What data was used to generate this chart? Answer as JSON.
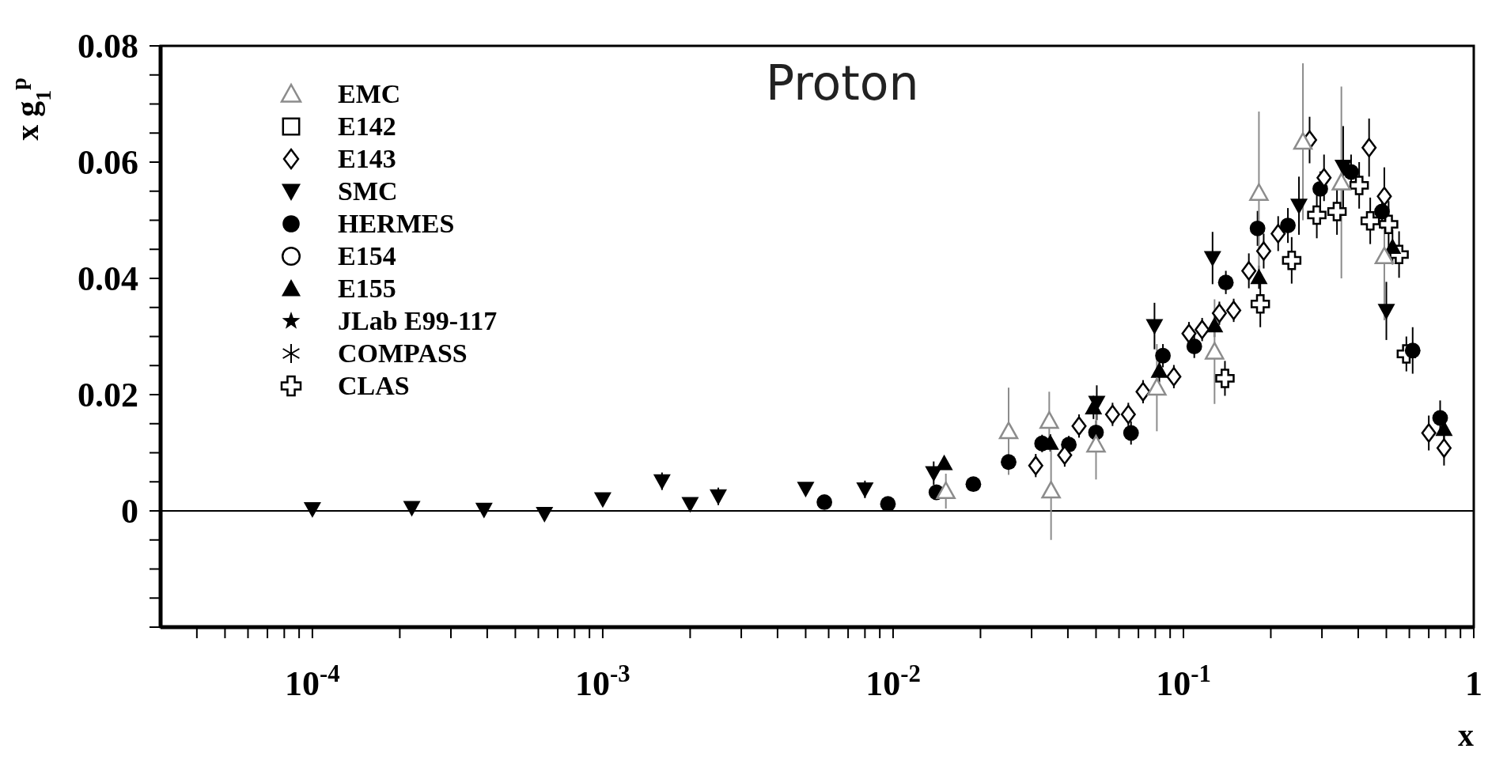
{
  "chart_data": {
    "type": "scatter",
    "title": "Proton",
    "xlabel": "x",
    "ylabel": "x g$_{1}$$^{p}$",
    "log": "x",
    "legend": "top left",
    "xlim": [
      3e-05,
      1
    ],
    "xticks": [
      {
        "value": 4e-05,
        "label": null
      },
      {
        "value": 5e-05,
        "label": null
      },
      {
        "value": 6e-05,
        "label": null
      },
      {
        "value": 7e-05,
        "label": null
      },
      {
        "value": 8e-05,
        "label": null
      },
      {
        "value": 9e-05,
        "label": null
      },
      {
        "value": 0.0001,
        "label": "10$^{-4}$"
      },
      {
        "value": 0.0002,
        "label": null
      },
      {
        "value": 0.0003,
        "label": null
      },
      {
        "value": 0.0004,
        "label": null
      },
      {
        "value": 0.0005,
        "label": null
      },
      {
        "value": 0.0006,
        "label": null
      },
      {
        "value": 0.0007,
        "label": null
      },
      {
        "value": 0.0008,
        "label": null
      },
      {
        "value": 0.0009,
        "label": null
      },
      {
        "value": 0.001,
        "label": "10$^{-3}$"
      },
      {
        "value": 0.002,
        "label": null
      },
      {
        "value": 0.003,
        "label": null
      },
      {
        "value": 0.004,
        "label": null
      },
      {
        "value": 0.005,
        "label": null
      },
      {
        "value": 0.006,
        "label": null
      },
      {
        "value": 0.007,
        "label": null
      },
      {
        "value": 0.008,
        "label": null
      },
      {
        "value": 0.009,
        "label": null
      },
      {
        "value": 0.01,
        "label": "10$^{-2}$"
      },
      {
        "value": 0.02,
        "label": null
      },
      {
        "value": 0.03,
        "label": null
      },
      {
        "value": 0.04,
        "label": null
      },
      {
        "value": 0.05,
        "label": null
      },
      {
        "value": 0.06,
        "label": null
      },
      {
        "value": 0.07,
        "label": null
      },
      {
        "value": 0.08,
        "label": null
      },
      {
        "value": 0.09,
        "label": null
      },
      {
        "value": 0.1,
        "label": "10$^{-1}$"
      },
      {
        "value": 0.2,
        "label": null
      },
      {
        "value": 0.3,
        "label": null
      },
      {
        "value": 0.4,
        "label": null
      },
      {
        "value": 0.5,
        "label": null
      },
      {
        "value": 0.6,
        "label": null
      },
      {
        "value": 0.7,
        "label": null
      },
      {
        "value": 0.8,
        "label": null
      },
      {
        "value": 0.9,
        "label": null
      },
      1
    ],
    "ylim": [
      -0.02,
      0.08
    ],
    "yticks": [
      {
        "value": -0.02,
        "label": null
      },
      {
        "value": -0.015,
        "label": null
      },
      {
        "value": -0.01,
        "label": null
      },
      {
        "value": -0.005,
        "label": null
      },
      0,
      {
        "value": 0.005,
        "label": null
      },
      {
        "value": 0.01,
        "label": null
      },
      {
        "value": 0.015,
        "label": null
      },
      0.02,
      {
        "value": 0.025,
        "label": null
      },
      {
        "value": 0.03,
        "label": null
      },
      {
        "value": 0.035,
        "label": null
      },
      0.04,
      {
        "value": 0.045,
        "label": null
      },
      {
        "value": 0.05,
        "label": null
      },
      {
        "value": 0.055,
        "label": null
      },
      0.06,
      {
        "value": 0.065,
        "label": null
      },
      {
        "value": 0.07,
        "label": null
      },
      {
        "value": 0.075,
        "label": null
      },
      0.08
    ],
    "ref_lines": [
      {
        "axis": "y",
        "value": 0,
        "color": "#000000"
      }
    ],
    "series": [
      {
        "name": "EMC",
        "color": "#8c8c8c",
        "marker": "triangle-open",
        "x": [
          0.0152,
          0.025,
          0.0345,
          0.035,
          0.05,
          0.081,
          0.128,
          0.182,
          0.258,
          0.35,
          0.492
        ],
        "values": [
          0.0034,
          0.0137,
          0.0155,
          0.0035,
          0.0114,
          0.0212,
          0.0274,
          0.0547,
          0.0635,
          0.0565,
          0.0438
        ],
        "errors": [
          0.003,
          0.0075,
          0.005,
          0.0085,
          0.006,
          0.0075,
          0.009,
          0.014,
          0.0135,
          0.0165,
          0.011
        ]
      },
      {
        "name": "E142",
        "color": "#000000",
        "marker": "square-open"
      },
      {
        "name": "E143",
        "color": "#000000",
        "marker": "diamond-open",
        "x": [
          0.031,
          0.039,
          0.0437,
          0.057,
          0.0646,
          0.0726,
          0.0927,
          0.1045,
          0.116,
          0.133,
          0.149,
          0.168,
          0.189,
          0.212,
          0.272,
          0.305,
          0.347,
          0.436,
          0.492,
          0.7,
          0.79
        ],
        "values": [
          0.0078,
          0.0096,
          0.0146,
          0.0166,
          0.0166,
          0.0205,
          0.0231,
          0.0305,
          0.0312,
          0.034,
          0.0345,
          0.0413,
          0.0447,
          0.0477,
          0.0638,
          0.0573,
          null,
          0.0625,
          0.0541,
          0.0134,
          0.0108
        ],
        "errors": [
          0.002,
          0.002,
          0.002,
          0.002,
          0.002,
          0.002,
          0.002,
          0.002,
          0.002,
          0.002,
          0.002,
          0.003,
          0.003,
          0.003,
          0.004,
          0.004,
          null,
          0.005,
          0.005,
          0.003,
          0.003
        ]
      },
      {
        "name": "SMC",
        "color": "#000000",
        "marker": "triangle-down",
        "x": [
          0.0001,
          0.00022,
          0.00039,
          0.00063,
          0.001,
          0.0016,
          0.002,
          0.0025,
          0.005,
          0.008,
          0.0138,
          0.025,
          0.0503,
          0.0795,
          0.126,
          0.25,
          0.355,
          0.5
        ],
        "values": [
          0.0003,
          0.0005,
          0.0002,
          -0.0005,
          0.002,
          0.0051,
          0.0012,
          0.0025,
          0.0038,
          0.0037,
          0.0065,
          null,
          0.0186,
          0.0318,
          0.0435,
          0.0525,
          0.0592,
          0.0344
        ],
        "errors": [
          0.0005,
          0.0005,
          0.0005,
          0.0005,
          0.001,
          0.0015,
          0.0008,
          0.0015,
          0.001,
          0.0015,
          0.002,
          null,
          0.003,
          0.004,
          0.0045,
          0.005,
          0.007,
          0.005
        ]
      },
      {
        "name": "HERMES",
        "color": "#000000",
        "marker": "circle",
        "x": [
          0.0058,
          0.0096,
          0.0141,
          0.0189,
          0.025,
          0.0326,
          0.0403,
          0.05,
          0.066,
          0.085,
          0.109,
          0.14,
          0.18,
          0.229,
          0.296,
          0.378,
          0.483,
          0.616,
          0.766
        ],
        "values": [
          0.0015,
          0.0012,
          0.0032,
          0.0046,
          0.0084,
          0.0116,
          0.0114,
          0.0135,
          0.0134,
          0.0267,
          0.0283,
          0.0393,
          0.0486,
          0.0491,
          0.0554,
          0.0583,
          0.0515,
          0.0276,
          0.016
        ],
        "errors": [
          0.001,
          0.001,
          0.001,
          0.001,
          0.0015,
          0.0015,
          0.0015,
          0.002,
          0.002,
          0.002,
          0.002,
          0.002,
          0.003,
          0.003,
          0.003,
          0.003,
          0.003,
          0.004,
          0.003
        ]
      },
      {
        "name": "E154",
        "color": "#000000",
        "marker": "circle-open"
      },
      {
        "name": "E155",
        "color": "#000000",
        "marker": "triangle",
        "x": [
          0.015,
          0.0348,
          0.049,
          0.0826,
          0.128,
          0.182,
          0.258,
          0.525,
          0.79
        ],
        "values": [
          0.0082,
          0.0117,
          0.0178,
          0.0241,
          0.0319,
          0.0402,
          null,
          0.0454,
          0.0141
        ],
        "errors": [
          0.001,
          0.0015,
          0.002,
          0.002,
          0.002,
          0.002,
          null,
          0.003,
          0.002
        ]
      },
      {
        "name": "JLab E99-117",
        "color": "#000000",
        "marker": "star"
      },
      {
        "name": "COMPASS",
        "color": "#000000",
        "marker": "asterisk"
      },
      {
        "name": "CLAS",
        "color": "#000000",
        "marker": "cross-open",
        "x": [
          0.139,
          0.184,
          0.236,
          0.288,
          0.338,
          0.403,
          0.44,
          0.509,
          0.553,
          0.586
        ],
        "values": [
          0.0228,
          0.0356,
          0.0431,
          0.0509,
          0.0515,
          0.056,
          0.0499,
          0.0493,
          0.0441,
          0.027
        ],
        "errors": [
          0.003,
          0.004,
          0.004,
          0.004,
          0.004,
          0.004,
          0.004,
          0.004,
          0.004,
          0.003
        ]
      }
    ]
  }
}
